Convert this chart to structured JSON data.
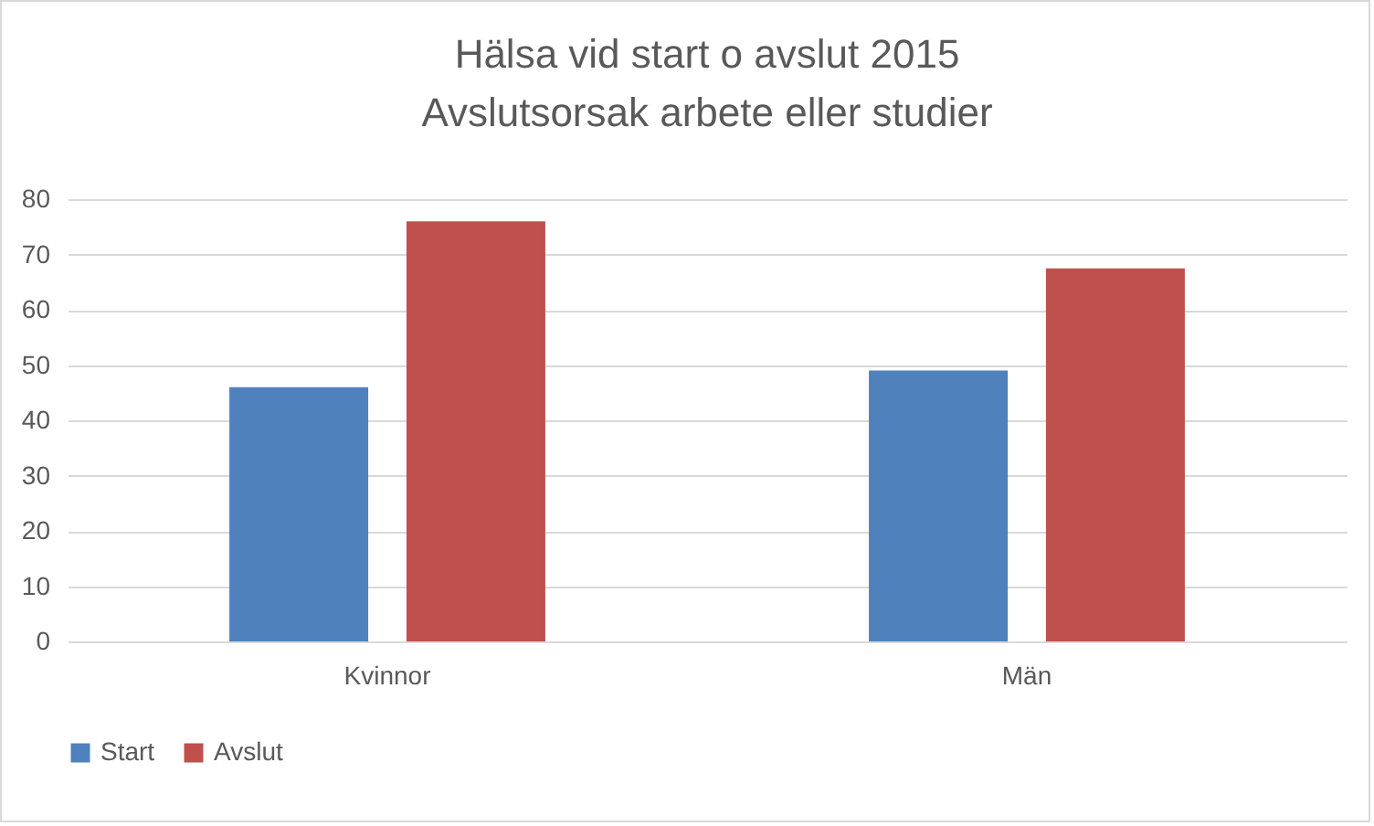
{
  "chart_data": {
    "type": "bar",
    "title": [
      "Hälsa vid start o avslut 2015",
      "Avslutsorsak arbete eller studier"
    ],
    "categories": [
      "Kvinnor",
      "Män"
    ],
    "series": [
      {
        "name": "Start",
        "color": "#4f81bd",
        "values": [
          46,
          49
        ]
      },
      {
        "name": "Avslut",
        "color": "#c0504d",
        "values": [
          76,
          67.5
        ]
      }
    ],
    "ylim": [
      0,
      80
    ],
    "yticks": [
      0,
      10,
      20,
      30,
      40,
      50,
      60,
      70,
      80
    ],
    "grid": "y",
    "legend": "bottom"
  }
}
